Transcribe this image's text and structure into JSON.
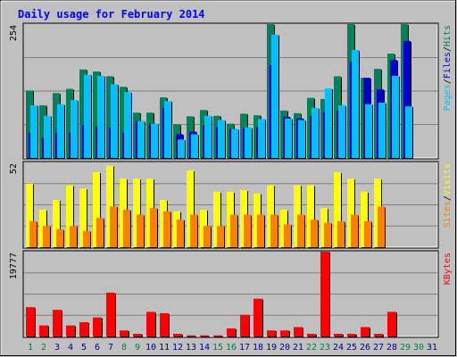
{
  "chart_data": [
    {
      "type": "bar",
      "panel": "hits-files-pages",
      "title": "Daily usage for February 2014",
      "categories": [
        "1",
        "2",
        "3",
        "4",
        "5",
        "6",
        "7",
        "8",
        "9",
        "10",
        "11",
        "12",
        "13",
        "14",
        "15",
        "16",
        "17",
        "18",
        "19",
        "20",
        "21",
        "22",
        "23",
        "24",
        "25",
        "26",
        "27",
        "28",
        "29",
        "30",
        "31"
      ],
      "max_label": "254",
      "ylim": [
        0,
        254
      ],
      "series": [
        {
          "name": "Hits",
          "color": "#00805c",
          "values": [
            128,
            100,
            123,
            131,
            168,
            164,
            155,
            135,
            86,
            86,
            115,
            64,
            79,
            91,
            80,
            65,
            84,
            81,
            254,
            90,
            85,
            114,
            112,
            155,
            254,
            152,
            169,
            198,
            254,
            null,
            null
          ]
        },
        {
          "name": "Files",
          "color": "#0000cc",
          "values": [
            48,
            38,
            48,
            48,
            63,
            60,
            57,
            48,
            70,
            65,
            95,
            45,
            50,
            62,
            58,
            55,
            57,
            58,
            176,
            78,
            75,
            80,
            87,
            90,
            183,
            152,
            130,
            186,
            222,
            null,
            null
          ]
        },
        {
          "name": "Pages",
          "color": "#00c0ff",
          "values": [
            100,
            80,
            102,
            110,
            158,
            156,
            140,
            125,
            70,
            65,
            108,
            35,
            45,
            80,
            72,
            55,
            58,
            74,
            234,
            75,
            72,
            95,
            132,
            100,
            205,
            102,
            105,
            156,
            98,
            null,
            null
          ]
        }
      ]
    },
    {
      "type": "bar",
      "panel": "visits-sites",
      "categories": [
        "1",
        "2",
        "3",
        "4",
        "5",
        "6",
        "7",
        "8",
        "9",
        "10",
        "11",
        "12",
        "13",
        "14",
        "15",
        "16",
        "17",
        "18",
        "19",
        "20",
        "21",
        "22",
        "23",
        "24",
        "25",
        "26",
        "27",
        "28",
        "29",
        "30",
        "31"
      ],
      "max_label": "52",
      "ylim": [
        0,
        52
      ],
      "series": [
        {
          "name": "Visits",
          "color": "#ffff00",
          "values": [
            39,
            23,
            29,
            38,
            36,
            46,
            50,
            42,
            42,
            42,
            29,
            22,
            47,
            23,
            34,
            34,
            35,
            33,
            38,
            23,
            38,
            38,
            24,
            46,
            42,
            34,
            42,
            null,
            null,
            null,
            null
          ]
        },
        {
          "name": "Sites",
          "color": "#ff8000",
          "values": [
            16,
            13,
            11,
            13,
            10,
            18,
            25,
            23,
            20,
            24,
            22,
            17,
            20,
            13,
            13,
            20,
            20,
            20,
            20,
            14,
            20,
            17,
            15,
            16,
            20,
            16,
            25,
            null,
            null,
            null,
            null
          ]
        }
      ]
    },
    {
      "type": "bar",
      "panel": "kbytes",
      "categories": [
        "1",
        "2",
        "3",
        "4",
        "5",
        "6",
        "7",
        "8",
        "9",
        "10",
        "11",
        "12",
        "13",
        "14",
        "15",
        "16",
        "17",
        "18",
        "19",
        "20",
        "21",
        "22",
        "23",
        "24",
        "25",
        "26",
        "27",
        "28",
        "29",
        "30",
        "31"
      ],
      "max_label": "19777",
      "ylim": [
        0,
        19777
      ],
      "series": [
        {
          "name": "KBytes",
          "color": "#ff0000",
          "values": [
            6832,
            2578,
            6213,
            2578,
            3353,
            4438,
            10230,
            1412,
            619,
            5740,
            5422,
            619,
            258,
            258,
            258,
            1886,
            5045,
            8813,
            1412,
            1412,
            2191,
            619,
            19777,
            619,
            619,
            2191,
            619,
            5740,
            null,
            null,
            null
          ]
        }
      ]
    }
  ],
  "legend": {
    "panel1": [
      {
        "text": "Pages",
        "color": "#00c0ff"
      },
      {
        "text": "/",
        "color": "#000000"
      },
      {
        "text": "Files",
        "color": "#0000cc"
      },
      {
        "text": "/",
        "color": "#000000"
      },
      {
        "text": "Hits",
        "color": "#00805c"
      }
    ],
    "panel2": [
      {
        "text": "Sites",
        "color": "#ff8000"
      },
      {
        "text": "/",
        "color": "#000000"
      },
      {
        "text": "Visits",
        "color": "#ffff00"
      }
    ],
    "panel3": [
      {
        "text": "KBytes",
        "color": "#ff0000"
      }
    ]
  },
  "colors": {
    "background": "#c0c0c0",
    "panel_bg": "#c0c0c0",
    "title": "#0000ff",
    "weekday_label": "#000080",
    "weekend_label": "#008040"
  },
  "weekend_days": [
    "1",
    "2",
    "8",
    "9",
    "15",
    "16",
    "22",
    "23",
    "29",
    "30"
  ]
}
